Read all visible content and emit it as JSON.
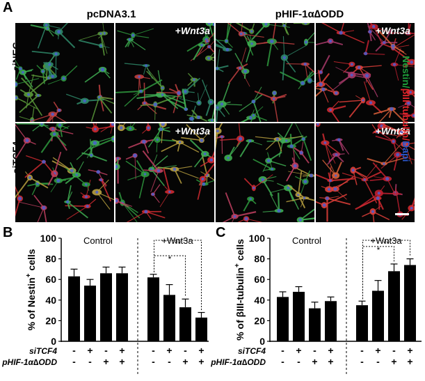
{
  "panel_a": {
    "letter": "A",
    "col_headers": [
      "pcDNA3.1",
      "pHIF-1α∆ODD"
    ],
    "row_labels": [
      "siNEG",
      "siTCF4"
    ],
    "wnt_label_prefix": "+",
    "wnt_label_italic": "Wnt3a",
    "stain_parts": [
      {
        "text": "Nestin",
        "color": "#1e9e3a"
      },
      {
        "text": "/",
        "color": "#1e9e3a"
      },
      {
        "text": "βIII-tubulin",
        "color": "#e0242a"
      },
      {
        "text": "/",
        "color": "#e0242a"
      },
      {
        "text": "Dapi",
        "color": "#2a55c8"
      }
    ],
    "micrographs": [
      {
        "row": "siNEG",
        "col": 1,
        "wnt": false,
        "dominant": "green"
      },
      {
        "row": "siNEG",
        "col": 2,
        "wnt": true,
        "dominant": "green"
      },
      {
        "row": "siNEG",
        "col": 3,
        "wnt": false,
        "dominant": "green"
      },
      {
        "row": "siNEG",
        "col": 4,
        "wnt": true,
        "dominant": "red"
      },
      {
        "row": "siTCF4",
        "col": 1,
        "wnt": false,
        "dominant": "mixed"
      },
      {
        "row": "siTCF4",
        "col": 2,
        "wnt": true,
        "dominant": "mixed"
      },
      {
        "row": "siTCF4",
        "col": 3,
        "wnt": false,
        "dominant": "mixed"
      },
      {
        "row": "siTCF4",
        "col": 4,
        "wnt": true,
        "dominant": "red"
      }
    ]
  },
  "chart_data": [
    {
      "panel": "B",
      "type": "bar",
      "ylabel_pre": "% of Nestin",
      "ylabel_sup": "+",
      "ylabel_post": " cells",
      "ylim": [
        0,
        100
      ],
      "yticks": [
        "0",
        "20",
        "40",
        "60",
        "80",
        "100"
      ],
      "group_labels": [
        "Control",
        "+Wnt3a"
      ],
      "values": [
        63,
        54,
        66,
        66,
        62,
        45,
        33,
        23
      ],
      "errors": [
        7,
        6,
        6,
        6,
        3,
        10,
        8,
        5
      ],
      "row_labels": [
        "siTCF4",
        "pHIF-1α∆ODD"
      ],
      "siTCF4_signs": [
        "-",
        "+",
        "-",
        "+",
        "-",
        "+",
        "-",
        "+"
      ],
      "pHIF_signs": [
        "-",
        "-",
        "+",
        "+",
        "-",
        "-",
        "+",
        "+"
      ],
      "significance": [
        {
          "from": 4,
          "to": 6,
          "label": "*"
        },
        {
          "from": 4,
          "to": 7,
          "label": "**"
        }
      ]
    },
    {
      "panel": "C",
      "type": "bar",
      "ylabel_pre": "% of βIII-tubulin",
      "ylabel_sup": "+",
      "ylabel_post": " cells",
      "ylim": [
        0,
        100
      ],
      "yticks": [
        "0",
        "20",
        "40",
        "60",
        "80",
        "100"
      ],
      "group_labels": [
        "Control",
        "+Wnt3a"
      ],
      "values": [
        43,
        48,
        32,
        39,
        35,
        49,
        68,
        74
      ],
      "errors": [
        5,
        5,
        6,
        4,
        4,
        10,
        7,
        6
      ],
      "row_labels": [
        "siTCF4",
        "pHIF-1α∆ODD"
      ],
      "siTCF4_signs": [
        "-",
        "+",
        "-",
        "+",
        "-",
        "+",
        "-",
        "+"
      ],
      "pHIF_signs": [
        "-",
        "-",
        "+",
        "+",
        "-",
        "-",
        "+",
        "+"
      ],
      "significance": [
        {
          "from": 4,
          "to": 6,
          "label": "*"
        },
        {
          "from": 4,
          "to": 7,
          "label": "**"
        }
      ]
    }
  ]
}
